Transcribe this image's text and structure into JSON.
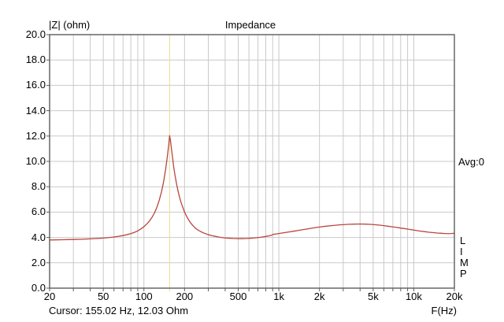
{
  "header": {
    "ylabel": "|Z| (ohm)",
    "title": "Impedance"
  },
  "side": {
    "avg_label": "Avg:0",
    "app_name_vertical": "L\nI\nM\nP"
  },
  "footer": {
    "cursor_readout": "Cursor: 155.02 Hz, 12.03 Ohm",
    "xlabel": "F(Hz)"
  },
  "chart_data": {
    "type": "line",
    "title": "Impedance",
    "ylabel": "|Z| (ohm)",
    "xlabel": "F(Hz)",
    "x_scale": "log",
    "x_range_hz": [
      20,
      20000
    ],
    "ylim": [
      0,
      20
    ],
    "grid": true,
    "y_ticks": [
      {
        "v": 0,
        "label": "0.0"
      },
      {
        "v": 2,
        "label": "2.0"
      },
      {
        "v": 4,
        "label": "4.0"
      },
      {
        "v": 6,
        "label": "6.0"
      },
      {
        "v": 8,
        "label": "8.0"
      },
      {
        "v": 10,
        "label": "10.0"
      },
      {
        "v": 12,
        "label": "12.0"
      },
      {
        "v": 14,
        "label": "14.0"
      },
      {
        "v": 16,
        "label": "16.0"
      },
      {
        "v": 18,
        "label": "18.0"
      },
      {
        "v": 20,
        "label": "20.0"
      }
    ],
    "x_ticks": [
      {
        "f": 20,
        "label": "20"
      },
      {
        "f": 50,
        "label": "50"
      },
      {
        "f": 100,
        "label": "100"
      },
      {
        "f": 200,
        "label": "200"
      },
      {
        "f": 500,
        "label": "500"
      },
      {
        "f": 1000,
        "label": "1k"
      },
      {
        "f": 2000,
        "label": "2k"
      },
      {
        "f": 5000,
        "label": "5k"
      },
      {
        "f": 10000,
        "label": "10k"
      },
      {
        "f": 20000,
        "label": "20k"
      }
    ],
    "minor_grid_freqs": [
      30,
      40,
      50,
      60,
      70,
      80,
      90,
      100,
      200,
      300,
      400,
      500,
      600,
      700,
      800,
      900,
      1000,
      2000,
      3000,
      4000,
      5000,
      6000,
      7000,
      8000,
      9000,
      10000
    ],
    "cursor": {
      "freq_hz": 155.02,
      "z_ohm": 12.03
    },
    "avg_count": 0,
    "series": [
      {
        "name": "impedance-magnitude",
        "points": [
          [
            20,
            3.8
          ],
          [
            25,
            3.82
          ],
          [
            30,
            3.84
          ],
          [
            35,
            3.86
          ],
          [
            40,
            3.89
          ],
          [
            45,
            3.92
          ],
          [
            50,
            3.95
          ],
          [
            55,
            3.99
          ],
          [
            60,
            4.04
          ],
          [
            65,
            4.09
          ],
          [
            70,
            4.15
          ],
          [
            75,
            4.22
          ],
          [
            80,
            4.3
          ],
          [
            85,
            4.4
          ],
          [
            90,
            4.52
          ],
          [
            95,
            4.67
          ],
          [
            100,
            4.85
          ],
          [
            105,
            5.06
          ],
          [
            110,
            5.3
          ],
          [
            115,
            5.6
          ],
          [
            120,
            5.95
          ],
          [
            125,
            6.4
          ],
          [
            130,
            6.95
          ],
          [
            135,
            7.6
          ],
          [
            140,
            8.4
          ],
          [
            145,
            9.4
          ],
          [
            150,
            10.6
          ],
          [
            153,
            11.4
          ],
          [
            155,
            12.03
          ],
          [
            157,
            11.7
          ],
          [
            160,
            11.0
          ],
          [
            163,
            10.3
          ],
          [
            166,
            9.6
          ],
          [
            170,
            8.9
          ],
          [
            175,
            8.15
          ],
          [
            180,
            7.55
          ],
          [
            185,
            7.05
          ],
          [
            190,
            6.65
          ],
          [
            200,
            6.0
          ],
          [
            210,
            5.55
          ],
          [
            220,
            5.2
          ],
          [
            230,
            4.95
          ],
          [
            240,
            4.75
          ],
          [
            250,
            4.6
          ],
          [
            265,
            4.45
          ],
          [
            280,
            4.33
          ],
          [
            300,
            4.22
          ],
          [
            320,
            4.14
          ],
          [
            340,
            4.08
          ],
          [
            360,
            4.03
          ],
          [
            380,
            3.99
          ],
          [
            400,
            3.96
          ],
          [
            430,
            3.94
          ],
          [
            460,
            3.92
          ],
          [
            500,
            3.91
          ],
          [
            540,
            3.91
          ],
          [
            580,
            3.92
          ],
          [
            620,
            3.94
          ],
          [
            660,
            3.96
          ],
          [
            700,
            3.99
          ],
          [
            750,
            4.03
          ],
          [
            800,
            4.08
          ],
          [
            850,
            4.13
          ],
          [
            880,
            4.17
          ],
          [
            900,
            4.22
          ],
          [
            930,
            4.26
          ],
          [
            960,
            4.28
          ],
          [
            1000,
            4.31
          ],
          [
            1100,
            4.38
          ],
          [
            1200,
            4.44
          ],
          [
            1300,
            4.5
          ],
          [
            1400,
            4.56
          ],
          [
            1600,
            4.66
          ],
          [
            1800,
            4.75
          ],
          [
            2000,
            4.82
          ],
          [
            2200,
            4.88
          ],
          [
            2500,
            4.94
          ],
          [
            2800,
            4.99
          ],
          [
            3000,
            5.01
          ],
          [
            3300,
            5.04
          ],
          [
            3600,
            5.05
          ],
          [
            4000,
            5.06
          ],
          [
            4400,
            5.05
          ],
          [
            4800,
            5.03
          ],
          [
            5200,
            5.0
          ],
          [
            5600,
            4.97
          ],
          [
            6000,
            4.93
          ],
          [
            6500,
            4.88
          ],
          [
            7000,
            4.83
          ],
          [
            7500,
            4.79
          ],
          [
            8000,
            4.74
          ],
          [
            8500,
            4.7
          ],
          [
            9000,
            4.66
          ],
          [
            9500,
            4.62
          ],
          [
            10000,
            4.58
          ],
          [
            11000,
            4.51
          ],
          [
            12000,
            4.46
          ],
          [
            13000,
            4.41
          ],
          [
            14000,
            4.38
          ],
          [
            15000,
            4.35
          ],
          [
            16000,
            4.33
          ],
          [
            17000,
            4.31
          ],
          [
            18000,
            4.3
          ],
          [
            19000,
            4.31
          ],
          [
            20000,
            4.33
          ]
        ]
      }
    ],
    "colors": {
      "curve": "#b9453f",
      "cursor_line": "#e9e3a2",
      "grid": "#c9c9c9",
      "frame": "#5c5c5c",
      "text": "#000000",
      "background": "#ffffff"
    }
  }
}
